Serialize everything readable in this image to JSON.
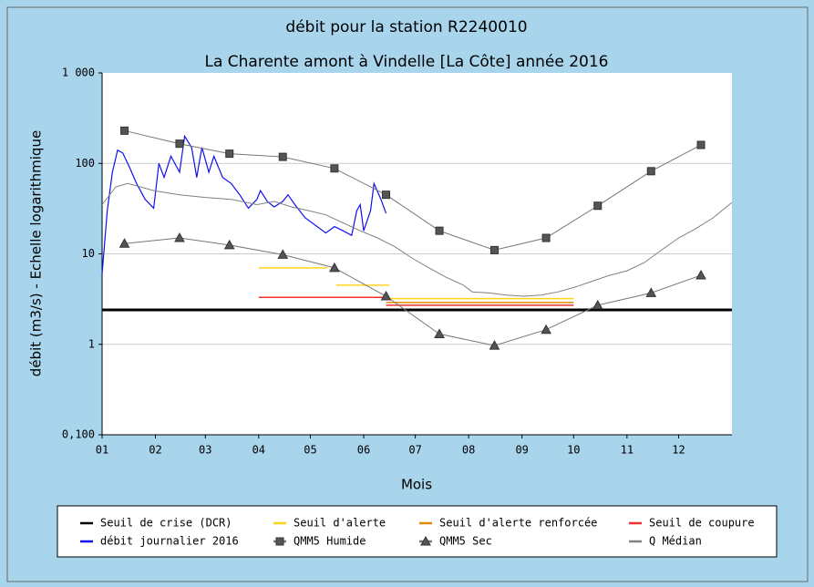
{
  "chart_data": {
    "type": "line",
    "title": "débit pour la station R2240010",
    "subtitle": "La Charente amont à Vindelle [La Côte] année 2016",
    "x_label": "Mois",
    "y_label": "débit (m3/s) - Echelle logarithmique",
    "y_log": true,
    "grid": true,
    "xlim": [
      0,
      366
    ],
    "xticks": [
      {
        "value": 0,
        "label": "01"
      },
      {
        "value": 31,
        "label": "02"
      },
      {
        "value": 60,
        "label": "03"
      },
      {
        "value": 91,
        "label": "04"
      },
      {
        "value": 121,
        "label": "05"
      },
      {
        "value": 152,
        "label": "06"
      },
      {
        "value": 182,
        "label": "07"
      },
      {
        "value": 213,
        "label": "08"
      },
      {
        "value": 244,
        "label": "09"
      },
      {
        "value": 274,
        "label": "10"
      },
      {
        "value": 305,
        "label": "11"
      },
      {
        "value": 335,
        "label": "12"
      }
    ],
    "ylim": [
      0.1,
      1000
    ],
    "yticks": [
      {
        "value": 0.1,
        "label": "0,100"
      },
      1,
      10,
      100,
      {
        "value": 1000,
        "label": "1 000"
      }
    ],
    "series": [
      {
        "name": "Seuil de crise (DCR)",
        "color": "#000000",
        "width": 3,
        "x": [
          0,
          366
        ],
        "values": [
          2.4,
          2.4
        ]
      },
      {
        "name": "Seuil d'alerte",
        "color": "#ffd21e",
        "width": 1.5,
        "x": [
          91,
          131,
          133,
          136,
          167,
          167,
          165,
          274
        ],
        "values": [
          7,
          7,
          null,
          4.5,
          4.5,
          null,
          3.2,
          3.2
        ]
      },
      {
        "name": "Seuil d'alerte renforcée",
        "color": "#e08a00",
        "width": 1.5,
        "x": [
          165,
          274
        ],
        "values": [
          2.9,
          2.9
        ]
      },
      {
        "name": "Seuil de coupure",
        "color": "#ee3030",
        "width": 1.5,
        "x": [
          91,
          165,
          166,
          165,
          274
        ],
        "values": [
          3.3,
          3.3,
          null,
          2.7,
          2.7
        ]
      },
      {
        "name": "débit journalier 2016",
        "color": "#1010ee",
        "width": 1.2,
        "x": [
          0,
          3,
          6,
          9,
          12,
          16,
          20,
          25,
          30,
          33,
          36,
          40,
          45,
          48,
          52,
          55,
          58,
          62,
          65,
          70,
          75,
          80,
          85,
          90,
          92,
          96,
          100,
          105,
          108,
          112,
          118,
          125,
          130,
          135,
          140,
          145,
          148,
          150,
          152,
          156,
          158,
          162,
          165
        ],
        "values": [
          6,
          30,
          80,
          140,
          130,
          90,
          60,
          40,
          32,
          100,
          70,
          120,
          80,
          200,
          150,
          70,
          150,
          80,
          120,
          70,
          60,
          45,
          32,
          40,
          50,
          38,
          33,
          38,
          45,
          35,
          25,
          20,
          17,
          20,
          18,
          16,
          30,
          35,
          18,
          30,
          60,
          40,
          28
        ]
      },
      {
        "name": "QMM5 Humide",
        "color": "#777777",
        "width": 1,
        "marker": "square",
        "x": [
          13,
          45,
          74,
          105,
          135,
          165,
          196,
          228,
          258,
          288,
          319,
          348
        ],
        "values": [
          230,
          165,
          128,
          118,
          88,
          45,
          18,
          11,
          15,
          34,
          82,
          160
        ]
      },
      {
        "name": "QMM5 Sec",
        "color": "#777777",
        "width": 1,
        "marker": "triangle",
        "x": [
          13,
          45,
          74,
          105,
          135,
          165,
          196,
          228,
          258,
          288,
          319,
          348
        ],
        "values": [
          13,
          15,
          12.5,
          9.8,
          7,
          3.4,
          1.3,
          0.97,
          1.45,
          2.7,
          3.7,
          5.8
        ]
      },
      {
        "name": "Q Médian",
        "color": "#808080",
        "width": 1,
        "x": [
          0,
          8,
          15,
          30,
          45,
          60,
          75,
          90,
          100,
          110,
          120,
          130,
          140,
          150,
          160,
          170,
          180,
          190,
          200,
          210,
          215,
          225,
          235,
          245,
          255,
          265,
          275,
          285,
          295,
          305,
          315,
          325,
          335,
          345,
          355,
          366
        ],
        "values": [
          35,
          55,
          60,
          50,
          45,
          42,
          40,
          35,
          38,
          33,
          30,
          27,
          22,
          18,
          15,
          12,
          9,
          7,
          5.5,
          4.5,
          3.8,
          3.7,
          3.5,
          3.4,
          3.5,
          3.8,
          4.3,
          5,
          5.8,
          6.5,
          8,
          11,
          15,
          19,
          25,
          37
        ]
      }
    ]
  }
}
